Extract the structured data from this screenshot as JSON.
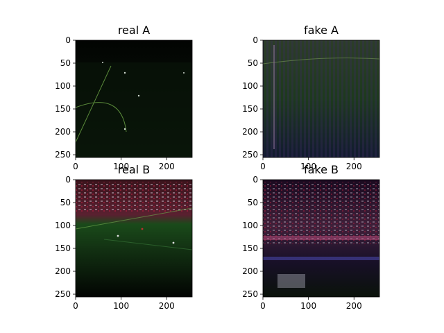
{
  "figure": {
    "background": "#ffffff"
  },
  "chart_data": [
    {
      "type": "image",
      "title": "real A",
      "xticks": [
        0,
        100,
        200
      ],
      "yticks": [
        0,
        50,
        100,
        150,
        200,
        250
      ],
      "xlim": [
        0,
        256
      ],
      "ylim": [
        256,
        0
      ],
      "colors": {
        "base": "#050805",
        "pitch": "#0d1f0d",
        "line": "#5a8a3a"
      }
    },
    {
      "type": "image",
      "title": "fake A",
      "xticks": [
        0,
        100,
        200
      ],
      "yticks": [
        0,
        50,
        100,
        150,
        200,
        250
      ],
      "xlim": [
        0,
        256
      ],
      "ylim": [
        256,
        0
      ],
      "colors": {
        "base": "#0a140e",
        "pitch": "#1f3a1f",
        "line": "#6a8a4a"
      }
    },
    {
      "type": "image",
      "title": "real B",
      "xticks": [
        0,
        100,
        200
      ],
      "yticks": [
        0,
        50,
        100,
        150,
        200,
        250
      ],
      "xlim": [
        0,
        256
      ],
      "ylim": [
        256,
        0
      ],
      "colors": {
        "base": "#020302",
        "pitch": "#1c4a1c",
        "crowd": "#4a1a22"
      }
    },
    {
      "type": "image",
      "title": "fake B",
      "xticks": [
        0,
        100,
        200
      ],
      "yticks": [
        0,
        50,
        100,
        150,
        200,
        250
      ],
      "xlim": [
        0,
        256
      ],
      "ylim": [
        256,
        0
      ],
      "colors": {
        "base": "#0a0610",
        "accent": "#8a3a9a",
        "crowd": "#c06080"
      }
    }
  ]
}
